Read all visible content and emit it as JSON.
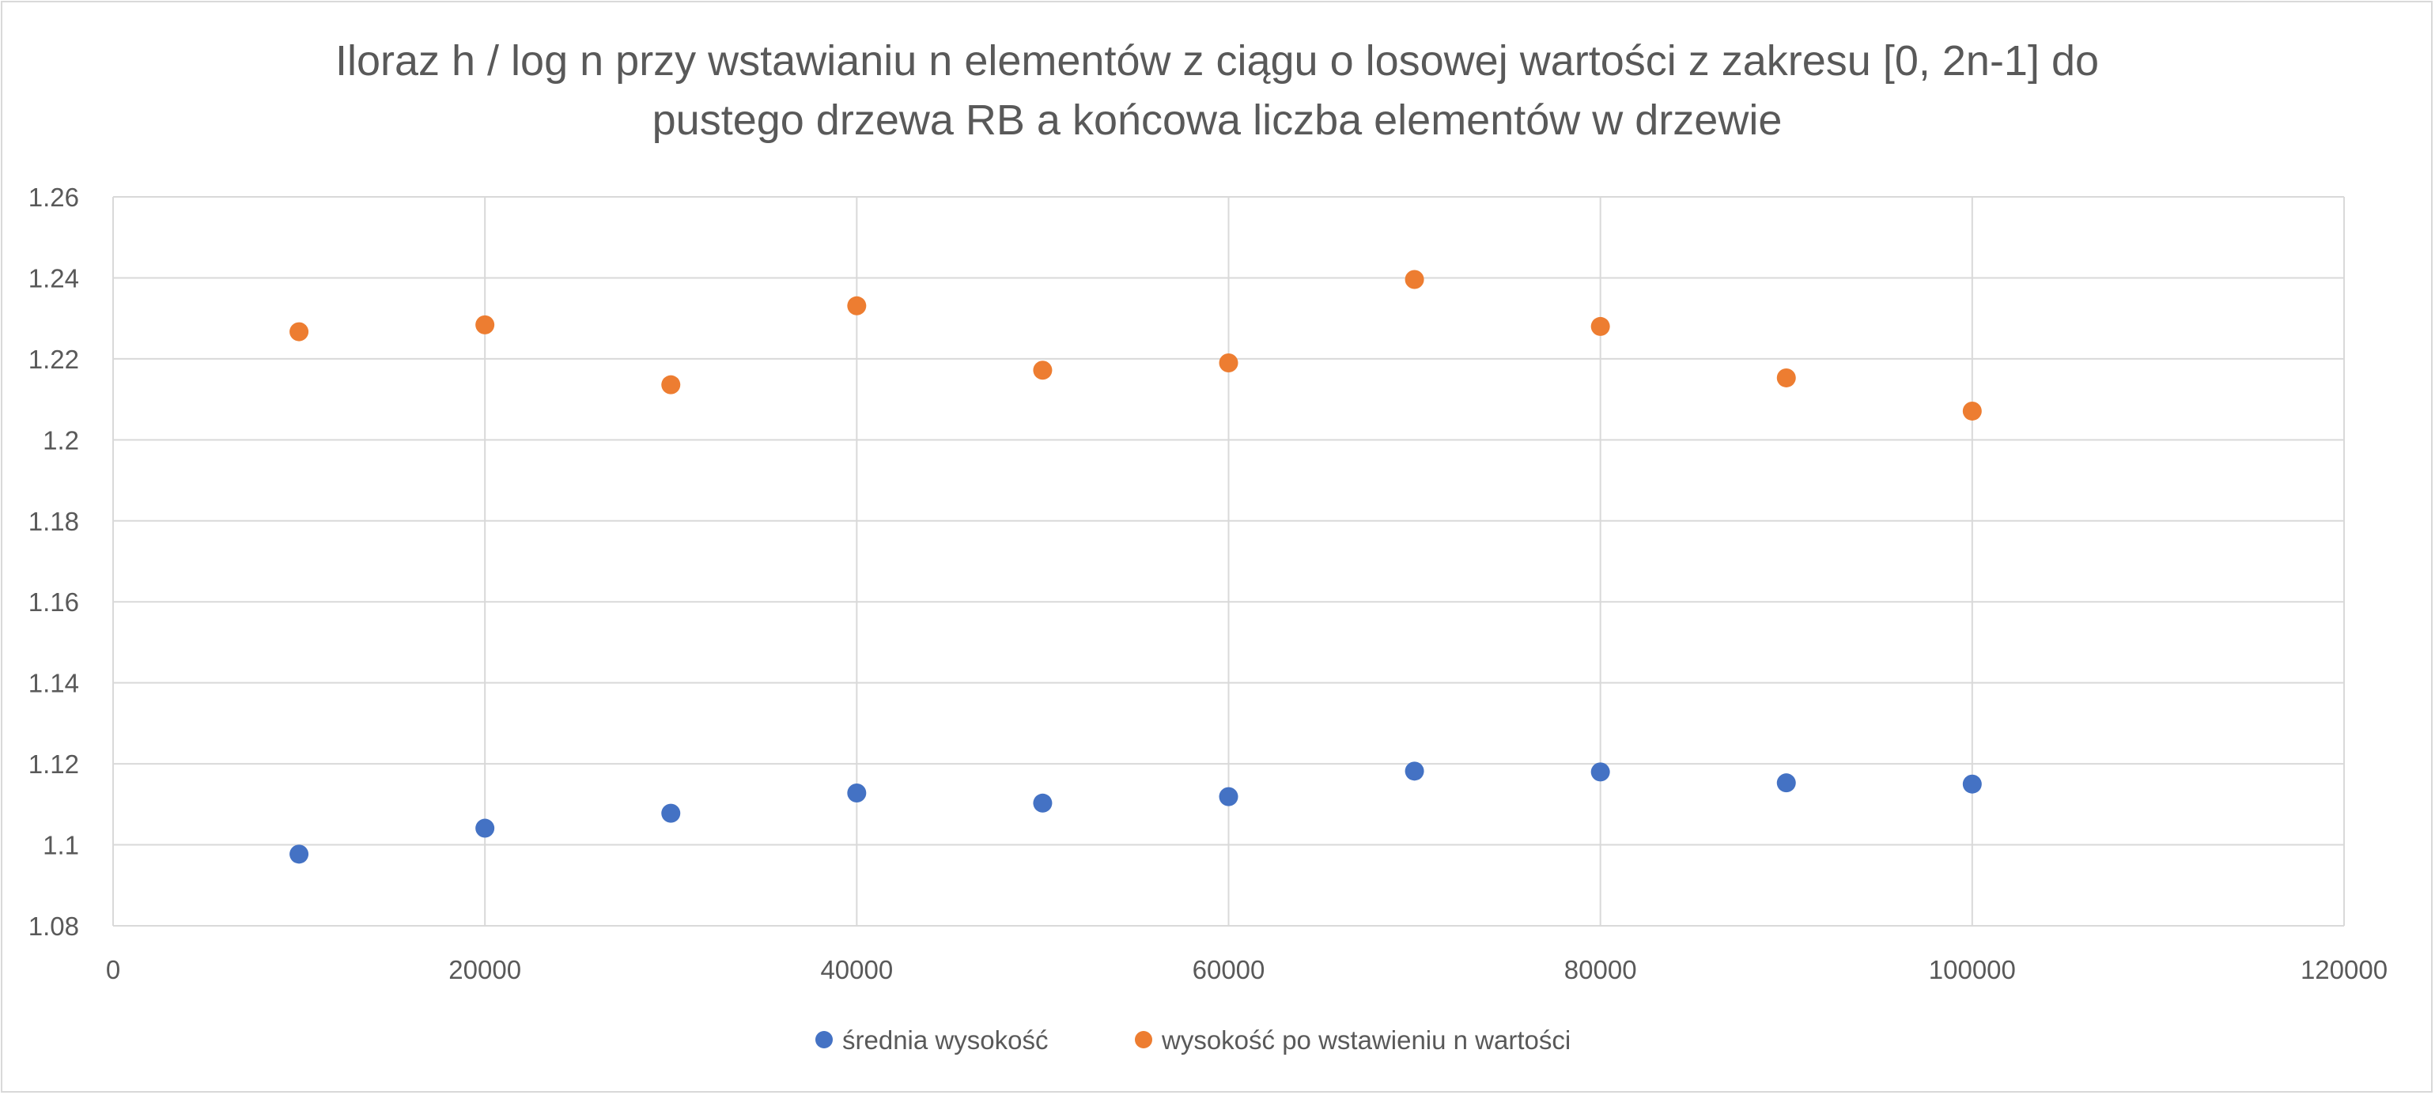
{
  "chart_data": {
    "type": "scatter",
    "title_lines": [
      "Iloraz h / log n przy wstawianiu n elementów z ciągu o losowej wartości z zakresu [0, 2n-1] do",
      "pustego drzewa RB a końcowa liczba elementów w drzewie"
    ],
    "xlabel": "",
    "ylabel": "",
    "xlim": [
      0,
      120000
    ],
    "ylim": [
      1.08,
      1.26
    ],
    "x_ticks": [
      0,
      20000,
      40000,
      60000,
      80000,
      100000,
      120000
    ],
    "x_tick_labels": [
      "0",
      "20000",
      "40000",
      "60000",
      "80000",
      "100000",
      "120000"
    ],
    "y_ticks": [
      1.08,
      1.1,
      1.12,
      1.14,
      1.16,
      1.18,
      1.2,
      1.22,
      1.24,
      1.26
    ],
    "y_tick_labels": [
      "1.08",
      "1.1",
      "1.12",
      "1.14",
      "1.16",
      "1.18",
      "1.2",
      "1.22",
      "1.24",
      "1.26"
    ],
    "grid": true,
    "legend_position": "bottom",
    "series": [
      {
        "name": "średnia wysokość",
        "color": "#4472c4",
        "x": [
          10000,
          20000,
          30000,
          40000,
          50000,
          60000,
          70000,
          80000,
          90000,
          100000
        ],
        "y": [
          1.0977,
          1.1041,
          1.1078,
          1.1128,
          1.1103,
          1.1119,
          1.1182,
          1.118,
          1.1153,
          1.115
        ]
      },
      {
        "name": "wysokość po wstawieniu n wartości",
        "color": "#ed7d31",
        "x": [
          10000,
          20000,
          30000,
          40000,
          50000,
          60000,
          70000,
          80000,
          90000,
          100000
        ],
        "y": [
          1.2267,
          1.2284,
          1.2136,
          1.2331,
          1.2172,
          1.219,
          1.2396,
          1.228,
          1.2153,
          1.2071
        ]
      }
    ]
  }
}
